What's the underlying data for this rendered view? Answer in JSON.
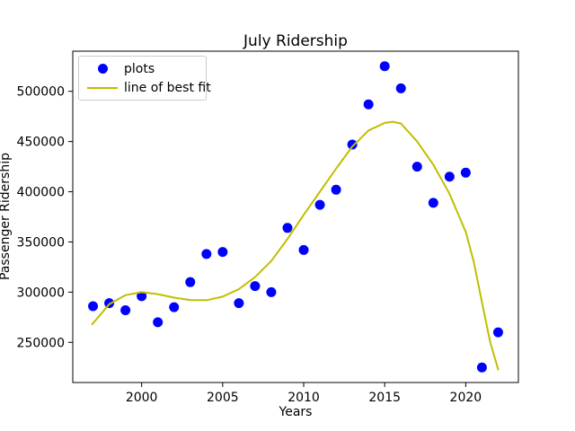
{
  "figure": {
    "title": "July Ridership",
    "xlabel": "Years",
    "ylabel": "Passenger Ridership",
    "background": "#ffffff"
  },
  "legend": {
    "items": [
      {
        "label": "plots",
        "marker": "dot",
        "color": "#0000ff"
      },
      {
        "label": "line of best fit",
        "marker": "line",
        "color": "#bfbf00"
      }
    ]
  },
  "chart_data": {
    "type": "scatter",
    "title": "July Ridership",
    "xlabel": "Years",
    "ylabel": "Passenger Ridership",
    "xlim": [
      1995.75,
      2023.25
    ],
    "ylim": [
      210000,
      540000
    ],
    "xticks": [
      2000,
      2005,
      2010,
      2015,
      2020
    ],
    "yticks": [
      250000,
      300000,
      350000,
      400000,
      450000,
      500000
    ],
    "grid": false,
    "legend_position": "upper left",
    "axis_color": "#000000",
    "series": [
      {
        "name": "plots",
        "type": "scatter",
        "color": "#0000ff",
        "x": [
          1997,
          1998,
          1999,
          2000,
          2001,
          2002,
          2003,
          2004,
          2005,
          2006,
          2007,
          2008,
          2009,
          2010,
          2011,
          2012,
          2013,
          2014,
          2015,
          2016,
          2017,
          2018,
          2019,
          2020,
          2021,
          2022
        ],
        "y": [
          286000,
          289000,
          282000,
          296000,
          270000,
          285000,
          310000,
          338000,
          340000,
          289000,
          306000,
          300000,
          364000,
          342000,
          387000,
          402000,
          447000,
          487000,
          525000,
          503000,
          425000,
          389000,
          415000,
          419000,
          225000,
          260000
        ]
      },
      {
        "name": "line of best fit",
        "type": "line",
        "color": "#bfbf00",
        "x": [
          1996.95,
          1998,
          1999,
          2000,
          2001,
          2002,
          2003,
          2004,
          2005,
          2006,
          2007,
          2008,
          2009,
          2010,
          2011,
          2012,
          2013,
          2014,
          2015,
          2015.5,
          2016,
          2017,
          2018,
          2019,
          2020,
          2020.5,
          2021,
          2021.5,
          2022
        ],
        "y": [
          268000,
          288000,
          297000,
          300000,
          298000,
          294500,
          292200,
          292000,
          295500,
          303000,
          315000,
          331000,
          353000,
          377000,
          400000,
          423000,
          445000,
          461000,
          468500,
          469700,
          468000,
          450000,
          427000,
          398000,
          360000,
          330000,
          290000,
          251000,
          223000
        ]
      }
    ]
  }
}
